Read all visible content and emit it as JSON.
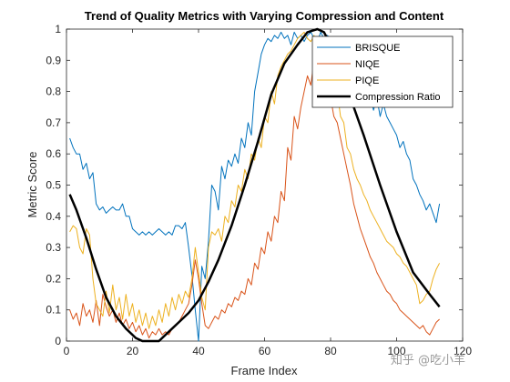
{
  "watermark": "知乎 @吃小羊",
  "chart_data": {
    "type": "line",
    "title": "Trend of Quality Metrics with Varying Compression and Content",
    "xlabel": "Frame Index",
    "ylabel": "Metric Score",
    "xlim": [
      0,
      120
    ],
    "ylim": [
      0,
      1
    ],
    "xticks": [
      0,
      20,
      40,
      60,
      80,
      100,
      120
    ],
    "yticks": [
      0,
      0.1,
      0.2,
      0.3,
      0.4,
      0.5,
      0.6,
      0.7,
      0.8,
      0.9,
      1
    ],
    "grid": false,
    "legend_position": "top-right",
    "series": [
      {
        "name": "BRISQUE",
        "color": "#0072BD",
        "width": 1,
        "x": [
          1,
          2,
          3,
          4,
          5,
          6,
          7,
          8,
          9,
          10,
          11,
          12,
          13,
          14,
          15,
          16,
          17,
          18,
          19,
          20,
          21,
          22,
          23,
          24,
          25,
          26,
          27,
          28,
          29,
          30,
          31,
          32,
          33,
          34,
          35,
          36,
          37,
          38,
          39,
          40,
          41,
          42,
          43,
          44,
          45,
          46,
          47,
          48,
          49,
          50,
          51,
          52,
          53,
          54,
          55,
          56,
          57,
          58,
          59,
          60,
          61,
          62,
          63,
          64,
          65,
          66,
          67,
          68,
          69,
          70,
          71,
          72,
          73,
          74,
          75,
          76,
          77,
          78,
          79,
          80,
          81,
          82,
          83,
          84,
          85,
          86,
          87,
          88,
          89,
          90,
          91,
          92,
          93,
          94,
          95,
          96,
          97,
          98,
          99,
          100,
          101,
          102,
          103,
          104,
          105,
          106,
          107,
          108,
          109,
          110,
          111,
          112,
          113
        ],
        "y": [
          0.65,
          0.62,
          0.6,
          0.6,
          0.55,
          0.57,
          0.52,
          0.54,
          0.44,
          0.42,
          0.43,
          0.41,
          0.42,
          0.43,
          0.42,
          0.42,
          0.44,
          0.4,
          0.4,
          0.36,
          0.35,
          0.34,
          0.35,
          0.34,
          0.35,
          0.34,
          0.35,
          0.36,
          0.35,
          0.34,
          0.35,
          0.34,
          0.37,
          0.37,
          0.36,
          0.38,
          0.3,
          0.21,
          0.1,
          0.0,
          0.24,
          0.2,
          0.32,
          0.5,
          0.48,
          0.42,
          0.56,
          0.52,
          0.58,
          0.56,
          0.6,
          0.57,
          0.65,
          0.62,
          0.7,
          0.66,
          0.8,
          0.86,
          0.92,
          0.95,
          0.97,
          0.96,
          0.98,
          0.97,
          0.99,
          0.97,
          0.98,
          0.95,
          0.99,
          0.97,
          0.98,
          0.96,
          0.98,
          0.99,
          0.97,
          0.96,
          0.99,
          0.97,
          0.98,
          0.97,
          0.96,
          0.94,
          0.9,
          0.92,
          0.86,
          0.88,
          0.83,
          0.85,
          0.82,
          0.8,
          0.78,
          0.79,
          0.74,
          0.78,
          0.72,
          0.76,
          0.72,
          0.7,
          0.68,
          0.66,
          0.62,
          0.64,
          0.6,
          0.58,
          0.52,
          0.5,
          0.47,
          0.45,
          0.42,
          0.44,
          0.41,
          0.38,
          0.44
        ]
      },
      {
        "name": "NIQE",
        "color": "#D95319",
        "width": 1,
        "x": [
          1,
          2,
          3,
          4,
          5,
          6,
          7,
          8,
          9,
          10,
          11,
          12,
          13,
          14,
          15,
          16,
          17,
          18,
          19,
          20,
          21,
          22,
          23,
          24,
          25,
          26,
          27,
          28,
          29,
          30,
          31,
          32,
          33,
          34,
          35,
          36,
          37,
          38,
          39,
          40,
          41,
          42,
          43,
          44,
          45,
          46,
          47,
          48,
          49,
          50,
          51,
          52,
          53,
          54,
          55,
          56,
          57,
          58,
          59,
          60,
          61,
          62,
          63,
          64,
          65,
          66,
          67,
          68,
          69,
          70,
          71,
          72,
          73,
          74,
          75,
          76,
          77,
          78,
          79,
          80,
          81,
          82,
          83,
          84,
          85,
          86,
          87,
          88,
          89,
          90,
          91,
          92,
          93,
          94,
          95,
          96,
          97,
          98,
          99,
          100,
          101,
          102,
          103,
          104,
          105,
          106,
          107,
          108,
          109,
          110,
          111,
          112,
          113
        ],
        "y": [
          0.1,
          0.07,
          0.09,
          0.05,
          0.12,
          0.08,
          0.1,
          0.06,
          0.13,
          0.05,
          0.15,
          0.11,
          0.08,
          0.1,
          0.06,
          0.09,
          0.05,
          0.07,
          0.04,
          0.06,
          0.03,
          0.05,
          0.02,
          0.04,
          0.01,
          0.03,
          0.02,
          0.04,
          0.02,
          0.03,
          0.02,
          0.04,
          0.05,
          0.06,
          0.08,
          0.1,
          0.12,
          0.18,
          0.26,
          0.2,
          0.12,
          0.05,
          0.04,
          0.06,
          0.08,
          0.07,
          0.1,
          0.09,
          0.12,
          0.11,
          0.14,
          0.13,
          0.16,
          0.15,
          0.2,
          0.18,
          0.25,
          0.23,
          0.3,
          0.28,
          0.35,
          0.32,
          0.4,
          0.38,
          0.48,
          0.45,
          0.62,
          0.58,
          0.72,
          0.68,
          0.75,
          0.8,
          0.85,
          0.82,
          0.9,
          0.88,
          0.87,
          0.85,
          0.8,
          0.78,
          0.72,
          0.7,
          0.65,
          0.6,
          0.55,
          0.5,
          0.44,
          0.4,
          0.36,
          0.33,
          0.3,
          0.27,
          0.25,
          0.22,
          0.2,
          0.18,
          0.16,
          0.15,
          0.13,
          0.12,
          0.1,
          0.09,
          0.08,
          0.07,
          0.06,
          0.05,
          0.04,
          0.05,
          0.03,
          0.02,
          0.04,
          0.06,
          0.07
        ]
      },
      {
        "name": "PIQE",
        "color": "#EDB120",
        "width": 1,
        "x": [
          1,
          2,
          3,
          4,
          5,
          6,
          7,
          8,
          9,
          10,
          11,
          12,
          13,
          14,
          15,
          16,
          17,
          18,
          19,
          20,
          21,
          22,
          23,
          24,
          25,
          26,
          27,
          28,
          29,
          30,
          31,
          32,
          33,
          34,
          35,
          36,
          37,
          38,
          39,
          40,
          41,
          42,
          43,
          44,
          45,
          46,
          47,
          48,
          49,
          50,
          51,
          52,
          53,
          54,
          55,
          56,
          57,
          58,
          59,
          60,
          61,
          62,
          63,
          64,
          65,
          66,
          67,
          68,
          69,
          70,
          71,
          72,
          73,
          74,
          75,
          76,
          77,
          78,
          79,
          80,
          81,
          82,
          83,
          84,
          85,
          86,
          87,
          88,
          89,
          90,
          91,
          92,
          93,
          94,
          95,
          96,
          97,
          98,
          99,
          100,
          101,
          102,
          103,
          104,
          105,
          106,
          107,
          108,
          109,
          110,
          111,
          112,
          113
        ],
        "y": [
          0.35,
          0.37,
          0.36,
          0.3,
          0.28,
          0.36,
          0.34,
          0.2,
          0.12,
          0.1,
          0.08,
          0.16,
          0.09,
          0.18,
          0.1,
          0.14,
          0.07,
          0.15,
          0.08,
          0.12,
          0.06,
          0.1,
          0.05,
          0.09,
          0.04,
          0.08,
          0.05,
          0.1,
          0.06,
          0.12,
          0.08,
          0.14,
          0.1,
          0.15,
          0.12,
          0.16,
          0.14,
          0.2,
          0.3,
          0.22,
          0.14,
          0.1,
          0.3,
          0.35,
          0.34,
          0.36,
          0.32,
          0.4,
          0.38,
          0.45,
          0.43,
          0.5,
          0.48,
          0.55,
          0.52,
          0.6,
          0.58,
          0.65,
          0.62,
          0.72,
          0.7,
          0.8,
          0.76,
          0.85,
          0.88,
          0.9,
          0.92,
          0.93,
          0.95,
          0.97,
          0.98,
          0.99,
          0.97,
          0.96,
          0.98,
          0.92,
          0.88,
          0.85,
          0.9,
          0.82,
          0.78,
          0.8,
          0.72,
          0.7,
          0.62,
          0.6,
          0.55,
          0.52,
          0.5,
          0.47,
          0.45,
          0.42,
          0.4,
          0.38,
          0.36,
          0.34,
          0.32,
          0.31,
          0.3,
          0.28,
          0.27,
          0.25,
          0.24,
          0.22,
          0.2,
          0.18,
          0.12,
          0.13,
          0.15,
          0.16,
          0.2,
          0.23,
          0.25
        ]
      },
      {
        "name": "Compression Ratio",
        "color": "#000000",
        "width": 2.5,
        "x": [
          1,
          3,
          6,
          9,
          12,
          15,
          18,
          21,
          23,
          26,
          28,
          31,
          34,
          37,
          40,
          43,
          46,
          50,
          54,
          58,
          62,
          66,
          70,
          73,
          76,
          78,
          80,
          83,
          86,
          90,
          95,
          100,
          105,
          110,
          113
        ],
        "y": [
          0.47,
          0.42,
          0.33,
          0.23,
          0.14,
          0.08,
          0.04,
          0.01,
          0.0,
          0.0,
          0.0,
          0.03,
          0.06,
          0.09,
          0.13,
          0.19,
          0.26,
          0.37,
          0.5,
          0.64,
          0.79,
          0.89,
          0.95,
          0.99,
          1.0,
          0.99,
          0.95,
          0.88,
          0.78,
          0.66,
          0.5,
          0.35,
          0.22,
          0.15,
          0.11
        ]
      }
    ]
  }
}
